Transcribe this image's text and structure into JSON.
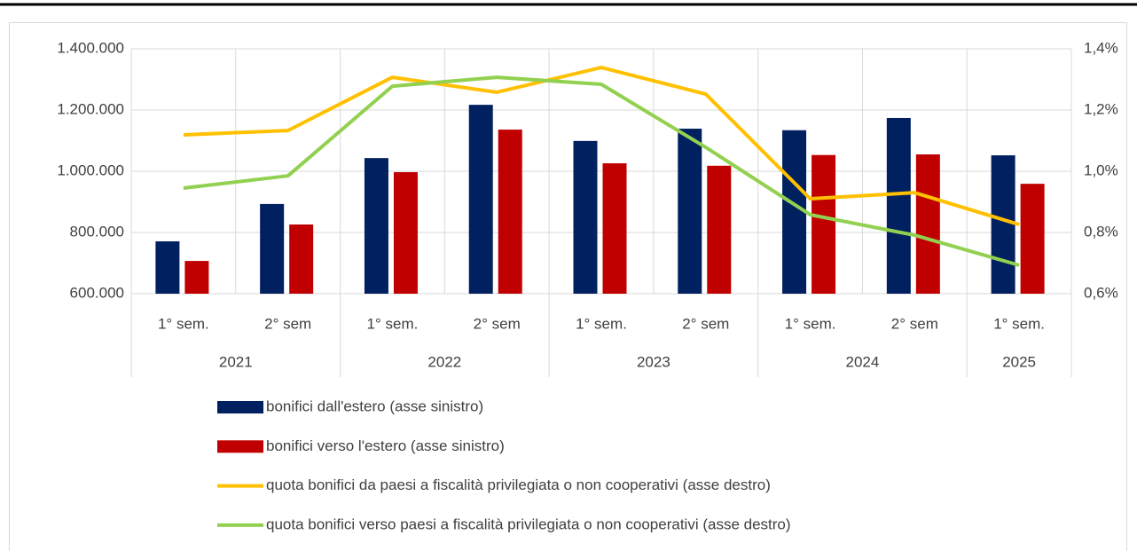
{
  "chart_data": {
    "type": "bar",
    "categories": [
      "1° sem.",
      "2° sem",
      "1° sem.",
      "2° sem",
      "1° sem.",
      "2° sem",
      "1° sem.",
      "2° sem",
      "1° sem."
    ],
    "groups": [
      {
        "label": "2021",
        "span": 2
      },
      {
        "label": "2022",
        "span": 2
      },
      {
        "label": "2023",
        "span": 2
      },
      {
        "label": "2024",
        "span": 2
      },
      {
        "label": "2025",
        "span": 1
      }
    ],
    "series": [
      {
        "name": "bonifici dall'estero (asse sinistro)",
        "type": "bar",
        "color": "#002060",
        "values": [
          771000,
          893000,
          1043000,
          1217000,
          1099000,
          1139000,
          1134000,
          1174000,
          1052000
        ]
      },
      {
        "name": "bonifici verso l'estero (asse sinistro)",
        "type": "bar",
        "color": "#c00000",
        "values": [
          707000,
          826000,
          997000,
          1136000,
          1026000,
          1018000,
          1053000,
          1055000,
          959000
        ]
      },
      {
        "name": "quota bonifici da paesi a fiscalità privilegiata o non cooperativi (asse destro)",
        "type": "line",
        "axis": "y2",
        "color": "#ffc000",
        "values": [
          1.119,
          1.133,
          1.307,
          1.258,
          1.339,
          1.252,
          0.91,
          0.93,
          0.826
        ]
      },
      {
        "name": "quota bonifici verso paesi a fiscalità privilegiata o non cooperativi (asse destro)",
        "type": "line",
        "axis": "y2",
        "color": "#92d050",
        "values": [
          0.945,
          0.985,
          1.278,
          1.307,
          1.284,
          1.078,
          0.858,
          0.791,
          0.693
        ]
      }
    ],
    "ylim": [
      600000,
      1400000
    ],
    "yticks": [
      {
        "value": 600000,
        "label": "600.000"
      },
      {
        "value": 800000,
        "label": "800.000"
      },
      {
        "value": 1000000,
        "label": "1.000.000"
      },
      {
        "value": 1200000,
        "label": "1.200.000"
      },
      {
        "value": 1400000,
        "label": "1.400.000"
      }
    ],
    "y2lim": [
      0.6,
      1.4
    ],
    "y2ticks": [
      {
        "value": 0.6,
        "label": "0,6%"
      },
      {
        "value": 0.8,
        "label": "0,8%"
      },
      {
        "value": 1.0,
        "label": "1,0%"
      },
      {
        "value": 1.2,
        "label": "1,2%"
      },
      {
        "value": 1.4,
        "label": "1,4%"
      }
    ],
    "grid": true,
    "legend": "bottom"
  }
}
